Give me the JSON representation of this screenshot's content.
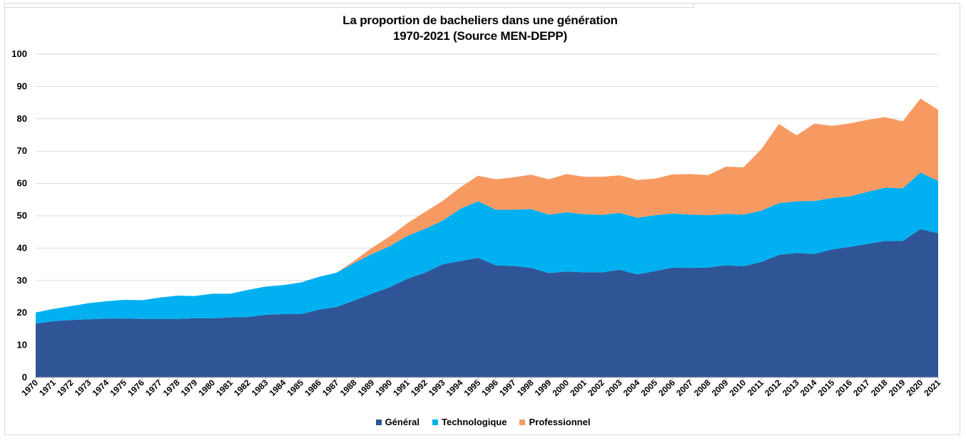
{
  "chart_data": {
    "type": "area",
    "title_line1": "La proportion de bacheliers dans une génération",
    "title_line2": "1970-2021 (Source MEN-DEPP)",
    "xlabel": "",
    "ylabel": "",
    "ylim": [
      0,
      100
    ],
    "yticks": [
      0,
      10,
      20,
      30,
      40,
      50,
      60,
      70,
      80,
      90,
      100
    ],
    "stacked": true,
    "grid": true,
    "legend_position": "bottom",
    "categories": [
      "1970",
      "1971",
      "1972",
      "1973",
      "1974",
      "1975",
      "1976",
      "1977",
      "1978",
      "1979",
      "1980",
      "1981",
      "1982",
      "1983",
      "1984",
      "1985",
      "1986",
      "1987",
      "1988",
      "1989",
      "1990",
      "1991",
      "1992",
      "1993",
      "1994",
      "1995",
      "1996",
      "1997",
      "1998",
      "1999",
      "2000",
      "2001",
      "2002",
      "2003",
      "2004",
      "2005",
      "2006",
      "2007",
      "2008",
      "2009",
      "2010",
      "2011",
      "2012",
      "2013",
      "2014",
      "2015",
      "2016",
      "2017",
      "2018",
      "2019",
      "2020",
      "2021"
    ],
    "series": [
      {
        "name": "Général",
        "color": "#2f5597",
        "values": [
          16.7,
          17.4,
          17.8,
          18.0,
          18.2,
          18.2,
          18.1,
          18.1,
          18.1,
          18.3,
          18.3,
          18.6,
          18.7,
          19.4,
          19.6,
          19.6,
          21.0,
          21.8,
          23.8,
          25.9,
          27.9,
          30.5,
          32.4,
          35.0,
          36.0,
          37.0,
          34.7,
          34.5,
          33.9,
          32.3,
          32.8,
          32.5,
          32.5,
          33.3,
          31.9,
          32.9,
          34.0,
          33.9,
          34.0,
          34.7,
          34.4,
          35.7,
          37.9,
          38.5,
          38.2,
          39.6,
          40.4,
          41.3,
          42.2,
          42.2,
          45.9,
          44.6
        ]
      },
      {
        "name": "Technologique",
        "color": "#00b0f0",
        "values": [
          3.4,
          3.8,
          4.3,
          5.0,
          5.4,
          5.8,
          5.8,
          6.6,
          7.2,
          6.9,
          7.6,
          7.3,
          8.4,
          8.7,
          9.0,
          9.8,
          10.1,
          10.6,
          11.6,
          12.3,
          12.7,
          13.3,
          13.6,
          13.5,
          16.2,
          17.5,
          17.2,
          17.4,
          18.2,
          18.1,
          18.3,
          18.0,
          17.8,
          17.6,
          17.5,
          17.3,
          16.7,
          16.5,
          16.2,
          15.9,
          16.0,
          15.9,
          16.0,
          16.0,
          16.4,
          15.9,
          15.6,
          16.1,
          16.5,
          16.3,
          17.5,
          16.2
        ]
      },
      {
        "name": "Professionnel",
        "color": "#f79a62",
        "values": [
          0,
          0,
          0,
          0,
          0,
          0,
          0,
          0,
          0,
          0,
          0,
          0,
          0,
          0,
          0,
          0,
          0,
          0,
          0.7,
          1.9,
          3.0,
          3.9,
          5.2,
          6.1,
          6.6,
          7.9,
          9.4,
          10.0,
          10.6,
          10.9,
          11.8,
          11.6,
          11.8,
          11.6,
          11.7,
          11.3,
          12.1,
          12.5,
          12.4,
          14.6,
          14.6,
          19.0,
          24.5,
          20.4,
          23.9,
          22.3,
          22.6,
          22.3,
          21.8,
          20.7,
          22.9,
          22.0
        ]
      }
    ]
  }
}
